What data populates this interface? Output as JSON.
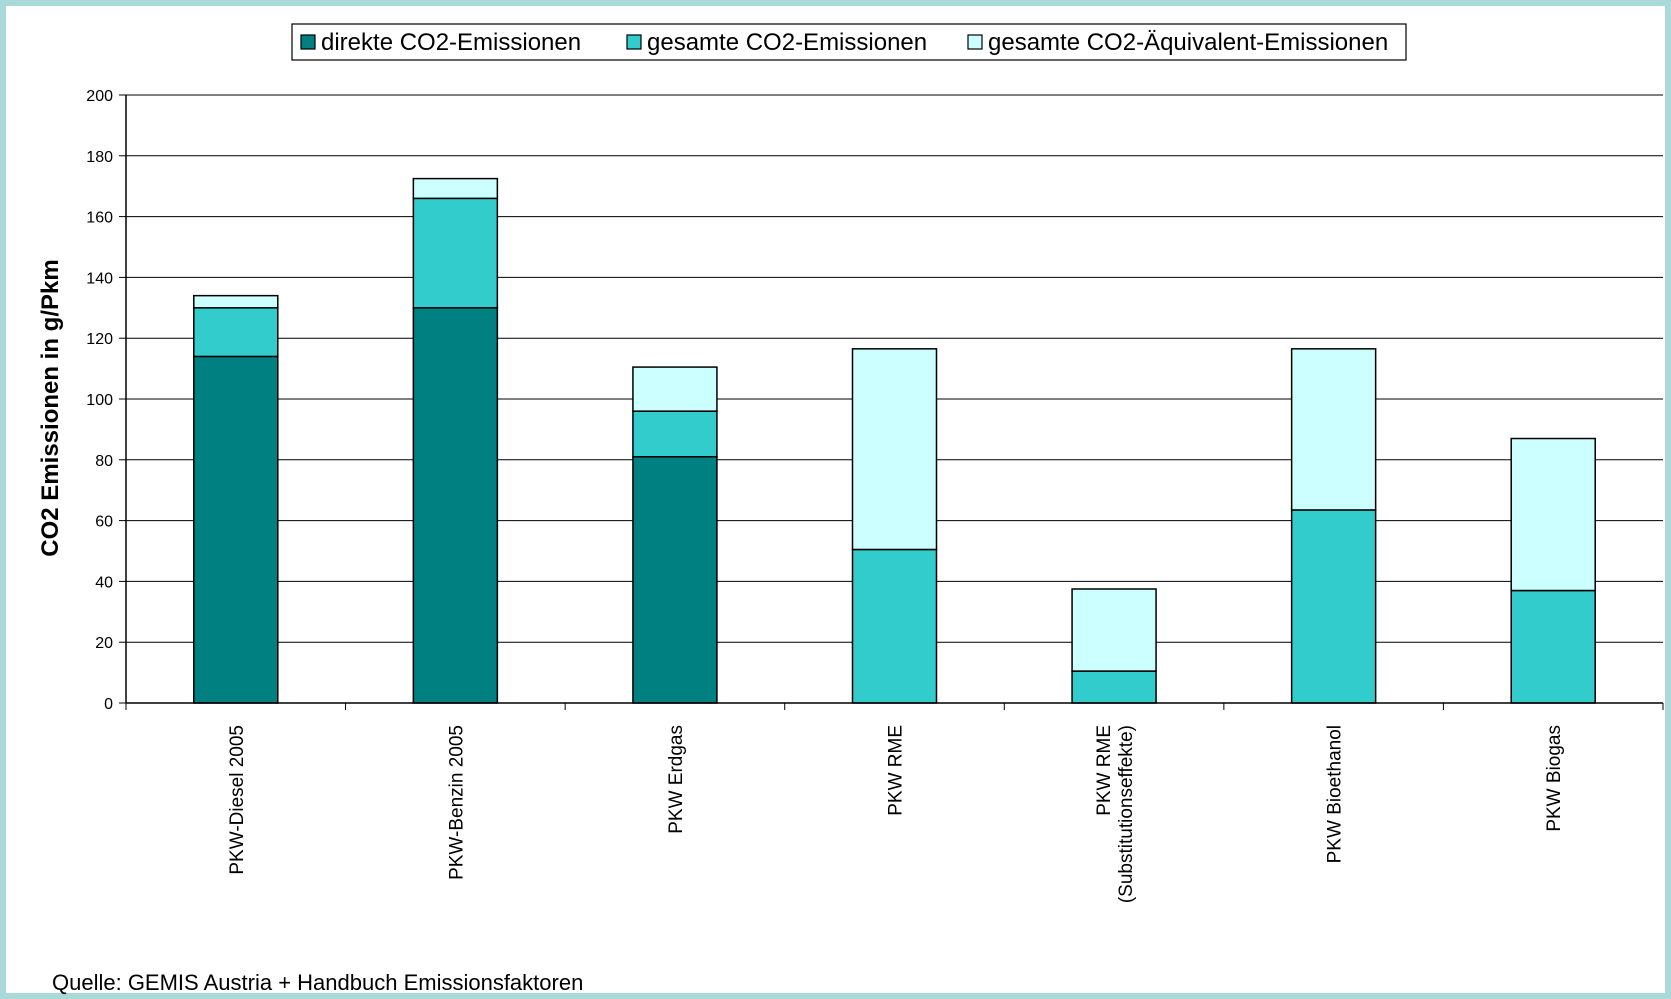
{
  "chart_data": {
    "type": "bar",
    "stacked": true,
    "categories": [
      [
        "PKW-Diesel 2005"
      ],
      [
        "PKW-Benzin 2005"
      ],
      [
        "PKW Erdgas"
      ],
      [
        "PKW RME"
      ],
      [
        "PKW RME",
        "(Substitutionseffekte)"
      ],
      [
        "PKW Bioethanol"
      ],
      [
        "PKW Biogas"
      ]
    ],
    "series": [
      {
        "name": "direkte CO2-Emissionen",
        "color": "#008080",
        "values": [
          114,
          130,
          81,
          0,
          0,
          0,
          0
        ]
      },
      {
        "name": "gesamte CO2-Emissionen",
        "color": "#33cccc",
        "values": [
          16,
          36,
          15,
          50.5,
          10.5,
          63.5,
          37
        ]
      },
      {
        "name": "gesamte CO2-Äquivalent-Emissionen",
        "color": "#ccffff",
        "values": [
          4,
          6.5,
          14.5,
          66,
          27,
          53,
          50
        ]
      }
    ],
    "ylabel": "CO2 Emissionen in g/Pkm",
    "ylim": [
      0,
      200
    ],
    "yticks": [
      0,
      20,
      40,
      60,
      80,
      100,
      120,
      140,
      160,
      180,
      200
    ],
    "grid": true,
    "legend_position": "top"
  },
  "source_note": "Quelle: GEMIS Austria + Handbuch Emissionsfaktoren"
}
